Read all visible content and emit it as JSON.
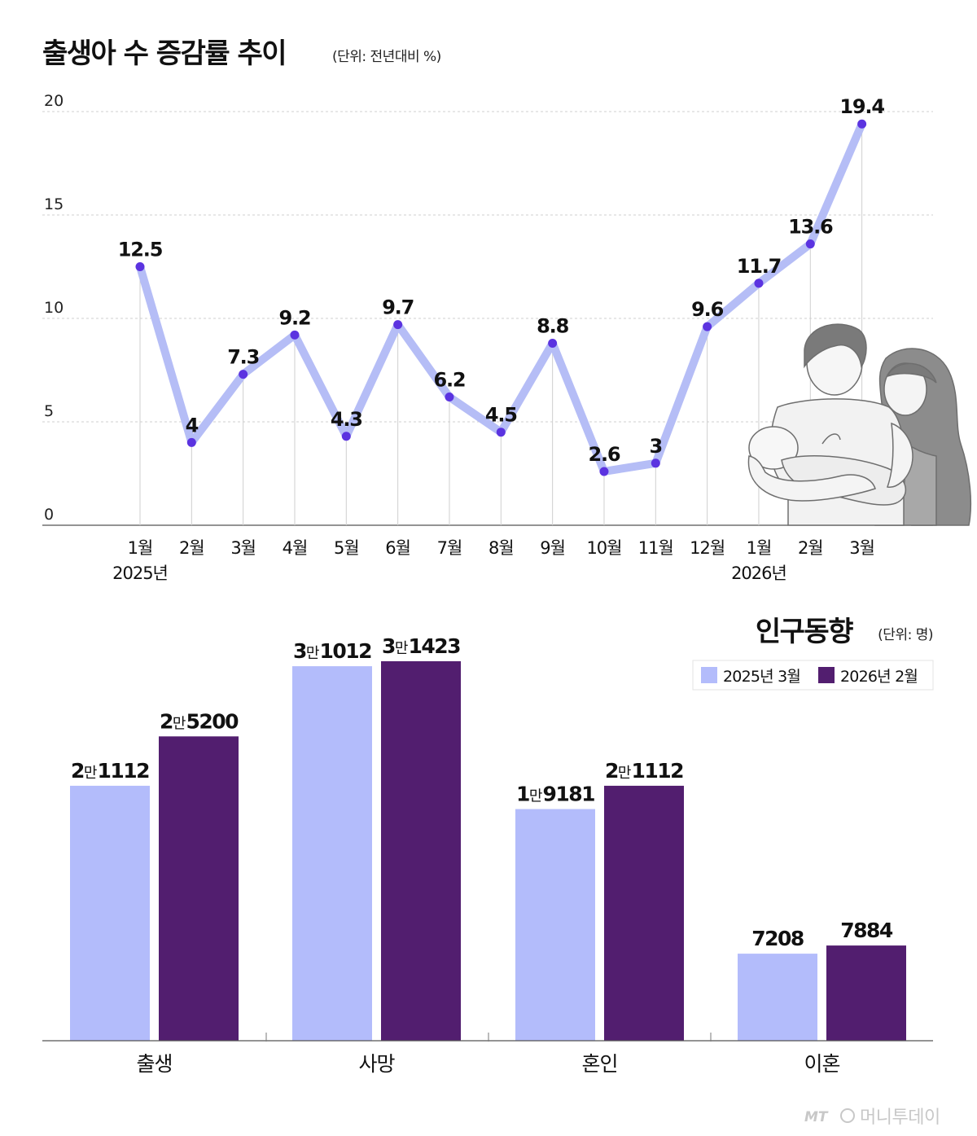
{
  "chart_data": [
    {
      "type": "line",
      "title": "출생아 수 증감률 추이",
      "unit": "(단위: 전년대비 %)",
      "categories": [
        "1월",
        "2월",
        "3월",
        "4월",
        "5월",
        "6월",
        "7월",
        "8월",
        "9월",
        "10월",
        "11월",
        "12월",
        "1월",
        "2월",
        "3월"
      ],
      "year_labels": [
        "2025년",
        "2026년"
      ],
      "values": [
        12.5,
        4,
        7.3,
        9.2,
        4.3,
        9.7,
        6.2,
        4.5,
        8.8,
        2.6,
        3,
        9.6,
        11.7,
        13.6,
        19.4
      ],
      "labels": [
        "12.5",
        "4",
        "7.3",
        "9.2",
        "4.3",
        "9.7",
        "6.2",
        "4.5",
        "8.8",
        "2.6",
        "3",
        "9.6",
        "11.7",
        "13.6",
        "19.4"
      ],
      "yticks": [
        "0",
        "5",
        "10",
        "15",
        "20"
      ],
      "ylim": [
        0,
        20
      ],
      "grid": true,
      "line_color": "#b5bdf6",
      "point_color": "#5b33e0"
    },
    {
      "type": "bar",
      "title": "인구동향",
      "unit": "(단위: 명)",
      "categories": [
        "출생",
        "사망",
        "혼인",
        "이혼"
      ],
      "series": [
        {
          "name": "2025년 3월",
          "color": "#b3bcfb",
          "values": [
            21112,
            31012,
            19181,
            7208
          ],
          "labels": [
            {
              "pre": "2",
              "man": "만",
              "post": "1112"
            },
            {
              "pre": "3",
              "man": "만",
              "post": "1012"
            },
            {
              "pre": "1",
              "man": "만",
              "post": "9181"
            },
            {
              "pre": "",
              "man": "",
              "post": "7208"
            }
          ]
        },
        {
          "name": "2026년 2월",
          "color": "#521e6f",
          "values": [
            25200,
            31423,
            21112,
            7884
          ],
          "labels": [
            {
              "pre": "2",
              "man": "만",
              "post": "5200"
            },
            {
              "pre": "3",
              "man": "만",
              "post": "1423"
            },
            {
              "pre": "2",
              "man": "만",
              "post": "1112"
            },
            {
              "pre": "",
              "man": "",
              "post": "7884"
            }
          ]
        }
      ],
      "legend_position": "top-right"
    }
  ],
  "illustration": {
    "subject": "parents-holding-newborn",
    "color": "#9a9a9a"
  },
  "watermark": {
    "mark": "MT",
    "text": "머니투데이"
  }
}
